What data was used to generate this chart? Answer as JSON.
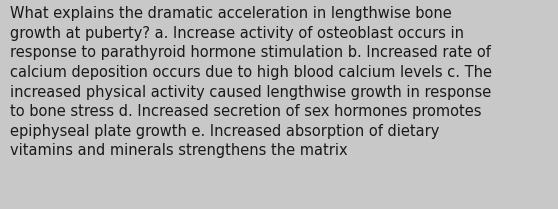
{
  "text": "What explains the dramatic acceleration in lengthwise bone\ngrowth at puberty? a. Increase activity of osteoblast occurs in\nresponse to parathyroid hormone stimulation b. Increased rate of\ncalcium deposition occurs due to high blood calcium levels c. The\nincreased physical activity caused lengthwise growth in response\nto bone stress d. Increased secretion of sex hormones promotes\nepiphyseal plate growth e. Increased absorption of dietary\nvitamins and minerals strengthens the matrix",
  "background_color": "#c8c8c8",
  "text_color": "#1a1a1a",
  "font_size": 10.5,
  "font_family": "DejaVu Sans",
  "fig_width": 5.58,
  "fig_height": 2.09,
  "dpi": 100
}
